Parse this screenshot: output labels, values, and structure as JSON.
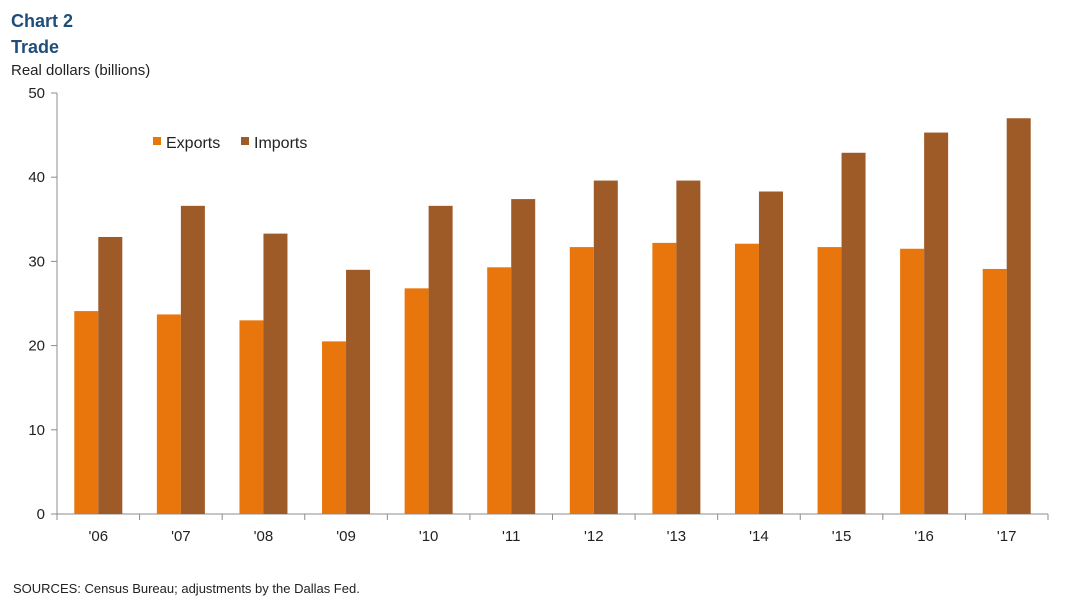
{
  "header": {
    "chart_label": "Chart 2",
    "title": "Trade",
    "ylabel": "Real dollars  (billions)"
  },
  "footer": {
    "source": "SOURCES:  Census Bureau; adjustments by the Dallas Fed."
  },
  "chart_data": {
    "type": "bar",
    "title": "Trade",
    "ylabel": "Real dollars  (billions)",
    "xlabel": "",
    "categories": [
      "'06",
      "'07",
      "'08",
      "'09",
      "'10",
      "'11",
      "'12",
      "'13",
      "'14",
      "'15",
      "'16",
      "'17"
    ],
    "series": [
      {
        "name": "Exports",
        "color": "#e8760c",
        "values": [
          24.1,
          23.7,
          23.0,
          20.5,
          26.8,
          29.3,
          31.7,
          32.2,
          32.1,
          31.7,
          31.5,
          29.1
        ]
      },
      {
        "name": "Imports",
        "color": "#9e5a27",
        "values": [
          32.9,
          36.6,
          33.3,
          29.0,
          36.6,
          37.4,
          39.6,
          39.6,
          38.3,
          42.9,
          45.3,
          47.0
        ]
      }
    ],
    "ylim": [
      0,
      50
    ],
    "yticks": [
      0,
      10,
      20,
      30,
      40,
      50
    ],
    "grid": false,
    "legend_position": "top-left"
  }
}
